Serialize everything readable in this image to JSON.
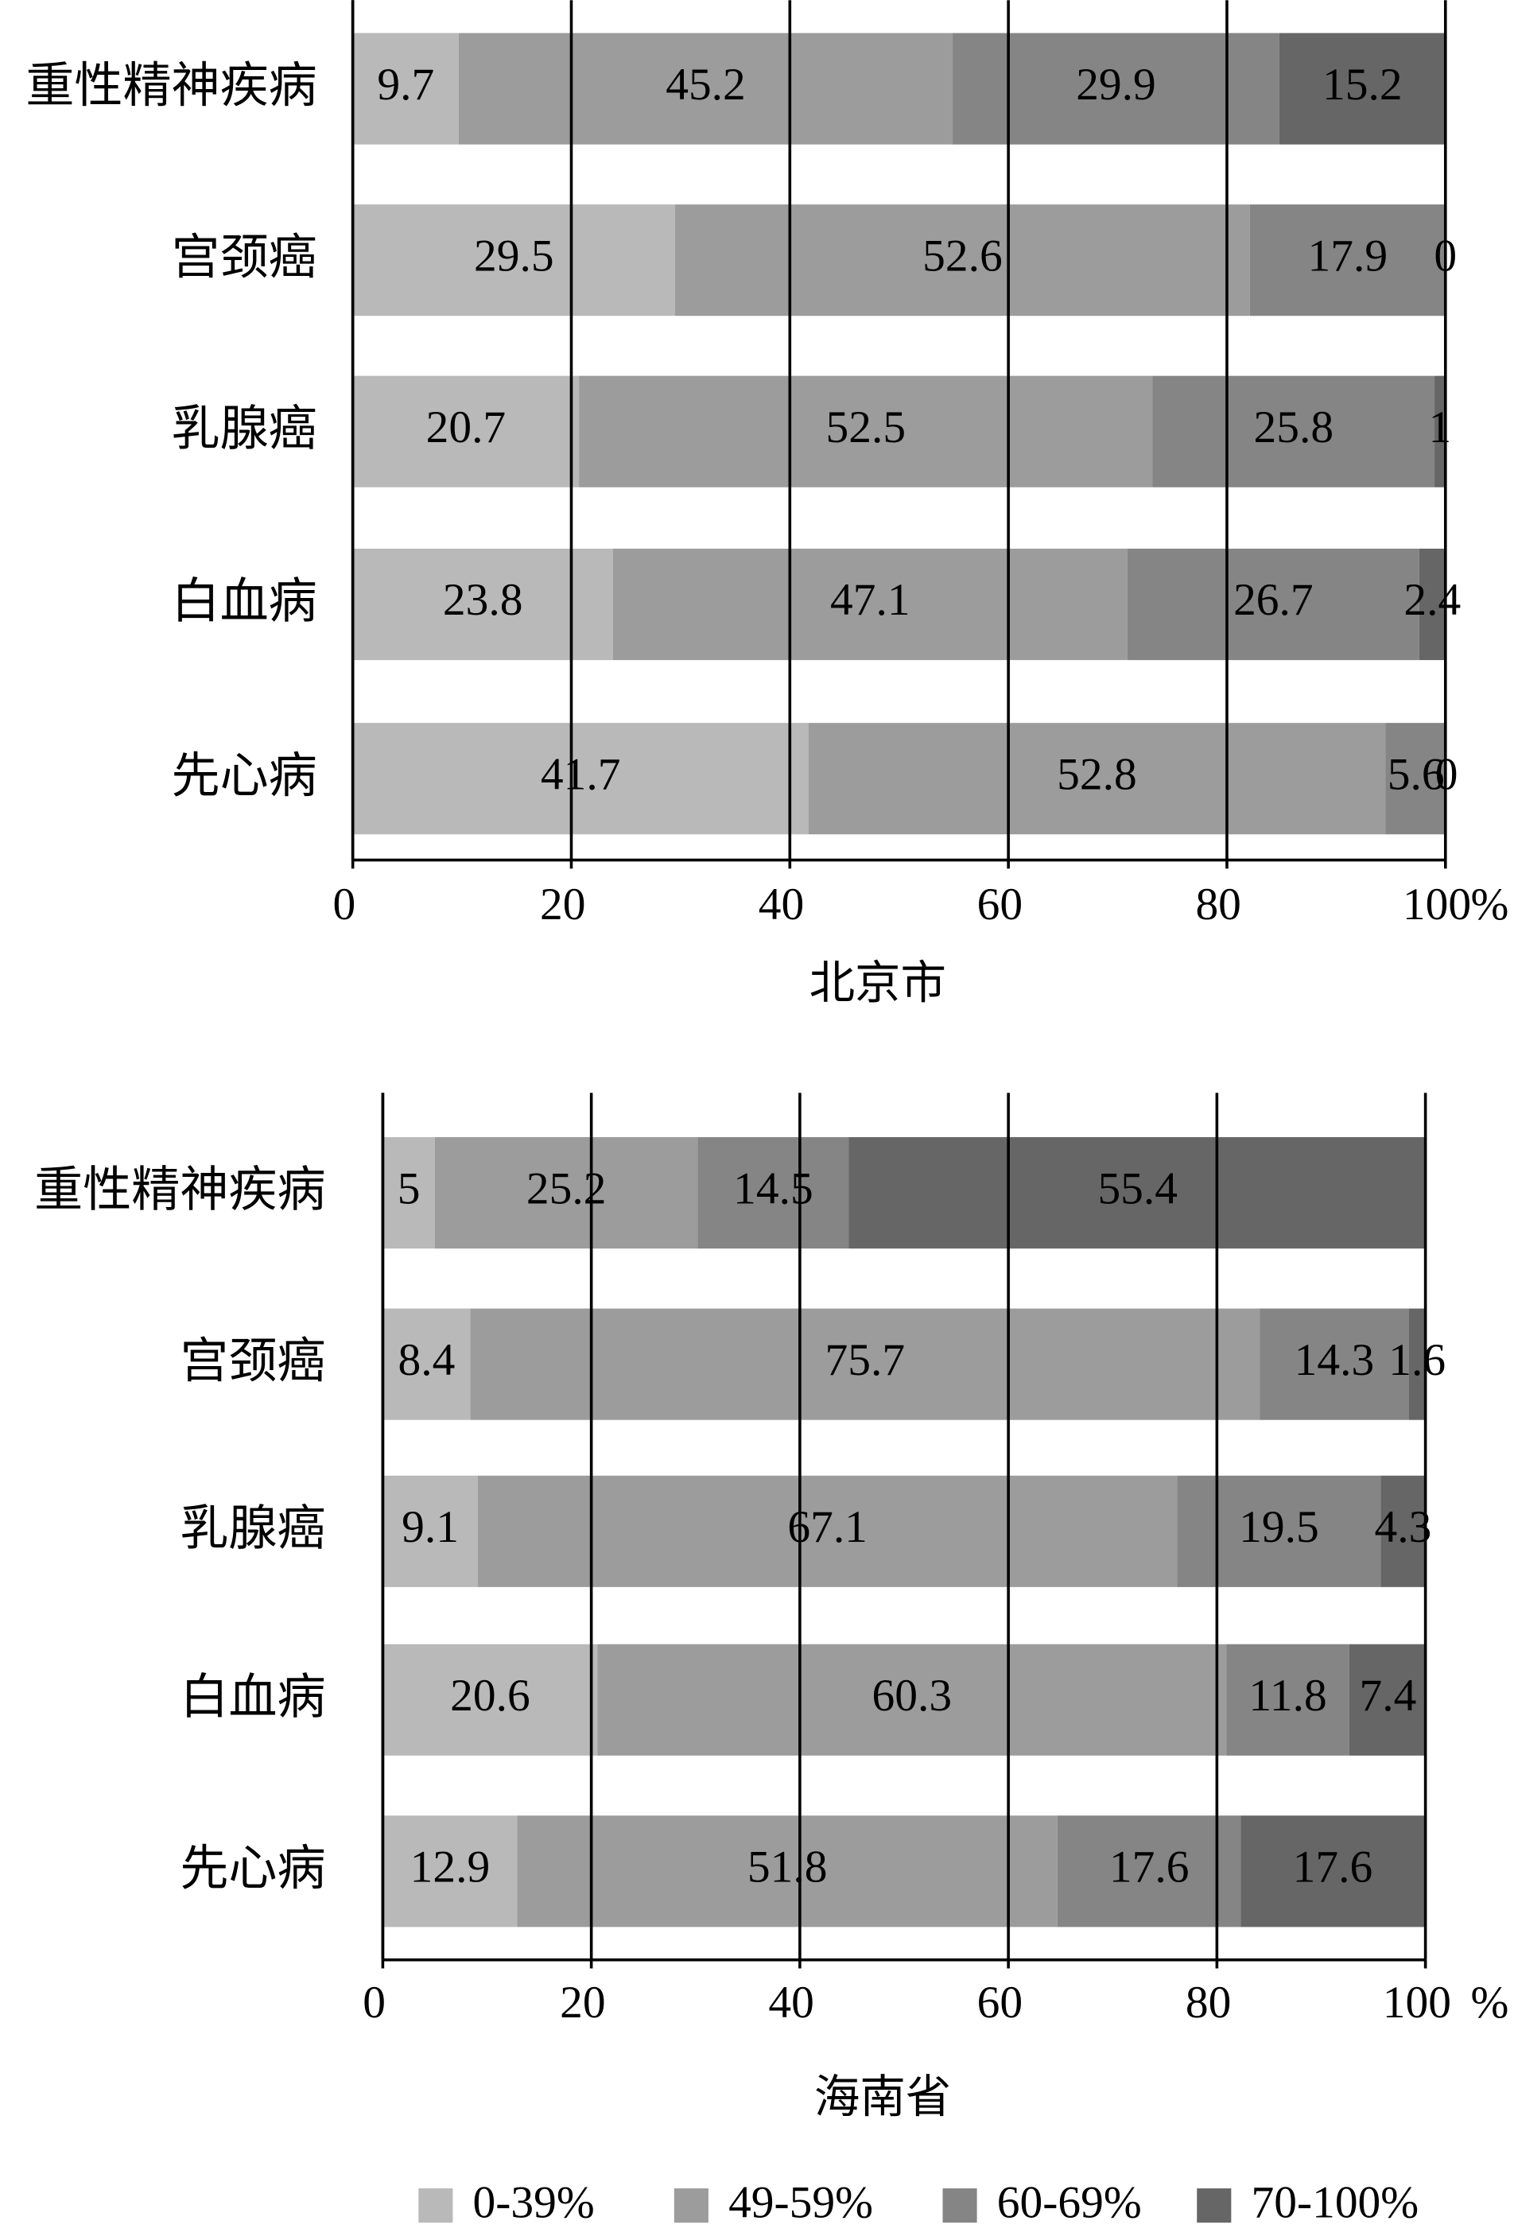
{
  "chart_data": [
    {
      "type": "stacked-bar-horizontal",
      "xlabel": "北京市",
      "x_unit": "%",
      "categories": [
        "重性精神疾病",
        "宫颈癌",
        "乳腺癌",
        "白血病",
        "先心病"
      ],
      "series": [
        {
          "values": [
            9.7,
            29.5,
            20.7,
            23.8,
            41.7
          ]
        },
        {
          "values": [
            45.2,
            52.6,
            52.5,
            47.1,
            52.8
          ]
        },
        {
          "values": [
            29.9,
            17.9,
            25.8,
            26.7,
            5.6
          ]
        },
        {
          "values": [
            15.2,
            0,
            1,
            2.4,
            0
          ]
        }
      ],
      "xlim": [
        0,
        100
      ],
      "xticks": [
        0,
        20,
        40,
        60,
        80,
        100
      ],
      "grid": true
    },
    {
      "type": "stacked-bar-horizontal",
      "xlabel": "海南省",
      "x_unit": "%",
      "categories": [
        "重性精神疾病",
        "宫颈癌",
        "乳腺癌",
        "白血病",
        "先心病"
      ],
      "series": [
        {
          "values": [
            5,
            8.4,
            9.1,
            20.6,
            12.9
          ]
        },
        {
          "values": [
            25.2,
            75.7,
            67.1,
            60.3,
            51.8
          ]
        },
        {
          "values": [
            14.5,
            14.3,
            19.5,
            11.8,
            17.6
          ]
        },
        {
          "values": [
            55.4,
            1.6,
            4.3,
            7.4,
            17.6
          ]
        }
      ],
      "xlim": [
        0,
        100
      ],
      "xticks": [
        0,
        20,
        40,
        60,
        80,
        100
      ],
      "grid": true
    }
  ],
  "legend": [
    {
      "label": "0-39%",
      "color": "#b9b9b9"
    },
    {
      "label": "49-59%",
      "color": "#9c9c9c"
    },
    {
      "label": "60-69%",
      "color": "#858585"
    },
    {
      "label": "70-100%",
      "color": "#666666"
    }
  ]
}
